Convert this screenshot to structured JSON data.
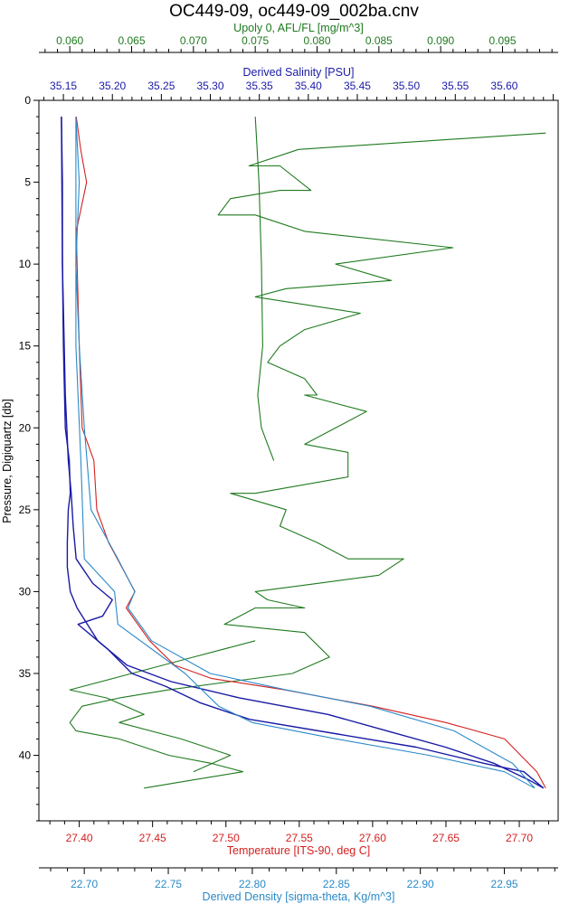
{
  "chart_data": {
    "type": "line",
    "title": "OC449-09, oc449-09_002ba.cnv",
    "colors": {
      "fluorescence": "#1f7a1f",
      "salinity": "#1a1aa6",
      "temperature": "#d42020",
      "density": "#2a8ac8",
      "axis": "#000000"
    },
    "y_axis": {
      "label": "Pressure, Digiquartz [db]",
      "range": [
        0,
        44
      ],
      "inverted": true,
      "ticks": [
        "0",
        "5",
        "10",
        "15",
        "20",
        "25",
        "30",
        "35",
        "40"
      ]
    },
    "x_axes": {
      "fluorescence": {
        "label": "Upoly 0, AFL/FL [mg/m^3]",
        "range": [
          0.0575,
          0.0995
        ],
        "ticks": [
          "0.060",
          "0.065",
          "0.070",
          "0.075",
          "0.080",
          "0.085",
          "0.090",
          "0.095"
        ]
      },
      "salinity": {
        "label": "Derived Salinity [PSU]",
        "range": [
          35.125,
          35.655
        ],
        "ticks": [
          "35.15",
          "35.20",
          "35.25",
          "35.30",
          "35.35",
          "35.40",
          "35.45",
          "35.50",
          "35.55",
          "35.60"
        ]
      },
      "temperature": {
        "label": "Temperature [ITS-90, deg C]",
        "range": [
          27.3725,
          27.7265
        ],
        "ticks": [
          "27.40",
          "27.45",
          "27.50",
          "27.55",
          "27.60",
          "27.65",
          "27.70"
        ]
      },
      "density": {
        "label": "Derived Density [sigma-theta, Kg/m^3]",
        "range": [
          22.673,
          22.982
        ],
        "ticks": [
          "22.70",
          "22.75",
          "22.80",
          "22.85",
          "22.90",
          "22.95"
        ]
      }
    },
    "series": [
      {
        "key": "fluorescence_a",
        "axis": "fluorescence",
        "points": [
          [
            0.075,
            1
          ],
          [
            0.0753,
            5
          ],
          [
            0.0755,
            10
          ],
          [
            0.0756,
            15
          ],
          [
            0.0752,
            18
          ],
          [
            0.0755,
            20
          ],
          [
            0.076,
            21
          ],
          [
            0.0765,
            22
          ]
        ]
      },
      {
        "key": "fluorescence_b",
        "axis": "fluorescence",
        "points": [
          [
            0.0985,
            2
          ],
          [
            0.0785,
            3
          ],
          [
            0.0745,
            4
          ],
          [
            0.077,
            4
          ],
          [
            0.0795,
            5.5
          ],
          [
            0.077,
            5.5
          ],
          [
            0.073,
            6
          ],
          [
            0.072,
            7
          ],
          [
            0.075,
            7
          ],
          [
            0.079,
            8
          ],
          [
            0.091,
            9
          ],
          [
            0.0815,
            10
          ],
          [
            0.086,
            11
          ],
          [
            0.0775,
            11.5
          ],
          [
            0.075,
            12
          ],
          [
            0.0835,
            13
          ],
          [
            0.079,
            14
          ],
          [
            0.077,
            15
          ],
          [
            0.076,
            16
          ],
          [
            0.079,
            17
          ],
          [
            0.08,
            18
          ],
          [
            0.079,
            18
          ],
          [
            0.084,
            19
          ],
          [
            0.079,
            21
          ],
          [
            0.0825,
            21.5
          ],
          [
            0.0825,
            23
          ],
          [
            0.075,
            24
          ],
          [
            0.073,
            24
          ],
          [
            0.0775,
            25
          ],
          [
            0.077,
            26
          ],
          [
            0.08,
            27
          ],
          [
            0.0825,
            28
          ],
          [
            0.087,
            28
          ],
          [
            0.085,
            29
          ],
          [
            0.08,
            29.5
          ],
          [
            0.075,
            30
          ],
          [
            0.076,
            30.5
          ],
          [
            0.079,
            31
          ],
          [
            0.075,
            31
          ],
          [
            0.0725,
            32
          ],
          [
            0.079,
            32.5
          ],
          [
            0.081,
            34
          ],
          [
            0.078,
            35
          ],
          [
            0.073,
            35.5
          ],
          [
            0.068,
            36
          ],
          [
            0.064,
            36.5
          ],
          [
            0.061,
            37
          ],
          [
            0.06,
            38
          ],
          [
            0.0605,
            38.5
          ],
          [
            0.064,
            39
          ],
          [
            0.068,
            40
          ],
          [
            0.0715,
            40.5
          ],
          [
            0.074,
            41
          ],
          [
            0.07,
            41.5
          ],
          [
            0.066,
            42
          ]
        ]
      },
      {
        "key": "fluorescence_c",
        "axis": "fluorescence",
        "points": [
          [
            0.075,
            33
          ],
          [
            0.07,
            34
          ],
          [
            0.065,
            35
          ],
          [
            0.06,
            36
          ],
          [
            0.063,
            36.5
          ],
          [
            0.066,
            37.5
          ],
          [
            0.064,
            38
          ],
          [
            0.069,
            39
          ],
          [
            0.073,
            40
          ],
          [
            0.07,
            41
          ]
        ]
      },
      {
        "key": "salinity_down",
        "axis": "salinity",
        "points": [
          [
            35.148,
            1
          ],
          [
            35.149,
            5
          ],
          [
            35.149,
            10
          ],
          [
            35.15,
            15
          ],
          [
            35.152,
            20
          ],
          [
            35.156,
            22
          ],
          [
            35.157,
            24
          ],
          [
            35.155,
            25
          ],
          [
            35.154,
            27
          ],
          [
            35.154,
            28.5
          ],
          [
            35.157,
            30
          ],
          [
            35.164,
            31
          ],
          [
            35.185,
            33
          ],
          [
            35.215,
            34.5
          ],
          [
            35.26,
            35.5
          ],
          [
            35.33,
            36.5
          ],
          [
            35.42,
            37.5
          ],
          [
            35.48,
            38.5
          ],
          [
            35.54,
            39.5
          ],
          [
            35.59,
            40.5
          ],
          [
            35.625,
            41.5
          ],
          [
            35.64,
            42
          ]
        ]
      },
      {
        "key": "salinity_up",
        "axis": "salinity",
        "points": [
          [
            35.64,
            42
          ],
          [
            35.62,
            41
          ],
          [
            35.58,
            40.5
          ],
          [
            35.51,
            39.5
          ],
          [
            35.43,
            38.7
          ],
          [
            35.34,
            37.8
          ],
          [
            35.29,
            36.8
          ],
          [
            35.255,
            35.8
          ],
          [
            35.22,
            35
          ],
          [
            35.195,
            33.5
          ],
          [
            35.165,
            32
          ],
          [
            35.19,
            31.5
          ],
          [
            35.2,
            30.5
          ],
          [
            35.18,
            29.5
          ],
          [
            35.163,
            28
          ],
          [
            35.16,
            26
          ],
          [
            35.158,
            24
          ],
          [
            35.155,
            22
          ],
          [
            35.152,
            18
          ],
          [
            35.149,
            10
          ],
          [
            35.148,
            1
          ]
        ]
      },
      {
        "key": "temperature",
        "axis": "temperature",
        "points": [
          [
            27.398,
            1
          ],
          [
            27.401,
            3
          ],
          [
            27.405,
            5
          ],
          [
            27.398,
            8
          ],
          [
            27.4,
            15
          ],
          [
            27.402,
            20
          ],
          [
            27.41,
            22
          ],
          [
            27.412,
            25
          ],
          [
            27.42,
            27
          ],
          [
            27.438,
            30
          ],
          [
            27.432,
            31
          ],
          [
            27.448,
            33
          ],
          [
            27.465,
            34.5
          ],
          [
            27.49,
            35.3
          ],
          [
            27.54,
            36
          ],
          [
            27.6,
            37
          ],
          [
            27.65,
            38
          ],
          [
            27.69,
            39
          ],
          [
            27.712,
            41
          ],
          [
            27.718,
            42
          ]
        ]
      },
      {
        "key": "density_down",
        "axis": "density",
        "points": [
          [
            22.695,
            1
          ],
          [
            22.697,
            5
          ],
          [
            22.695,
            10
          ],
          [
            22.697,
            15
          ],
          [
            22.7,
            20
          ],
          [
            22.704,
            25
          ],
          [
            22.72,
            28
          ],
          [
            22.73,
            30
          ],
          [
            22.726,
            31
          ],
          [
            22.74,
            33
          ],
          [
            22.775,
            35
          ],
          [
            22.82,
            36
          ],
          [
            22.87,
            37
          ],
          [
            22.92,
            38.5
          ],
          [
            22.955,
            40.5
          ],
          [
            22.968,
            42
          ]
        ]
      },
      {
        "key": "density_up",
        "axis": "density",
        "points": [
          [
            22.968,
            42
          ],
          [
            22.95,
            41
          ],
          [
            22.905,
            40
          ],
          [
            22.85,
            39
          ],
          [
            22.8,
            38
          ],
          [
            22.78,
            37
          ],
          [
            22.76,
            35
          ],
          [
            22.72,
            32
          ],
          [
            22.718,
            30
          ],
          [
            22.7,
            28
          ],
          [
            22.698,
            22
          ],
          [
            22.695,
            15
          ],
          [
            22.695,
            1
          ]
        ]
      }
    ]
  }
}
